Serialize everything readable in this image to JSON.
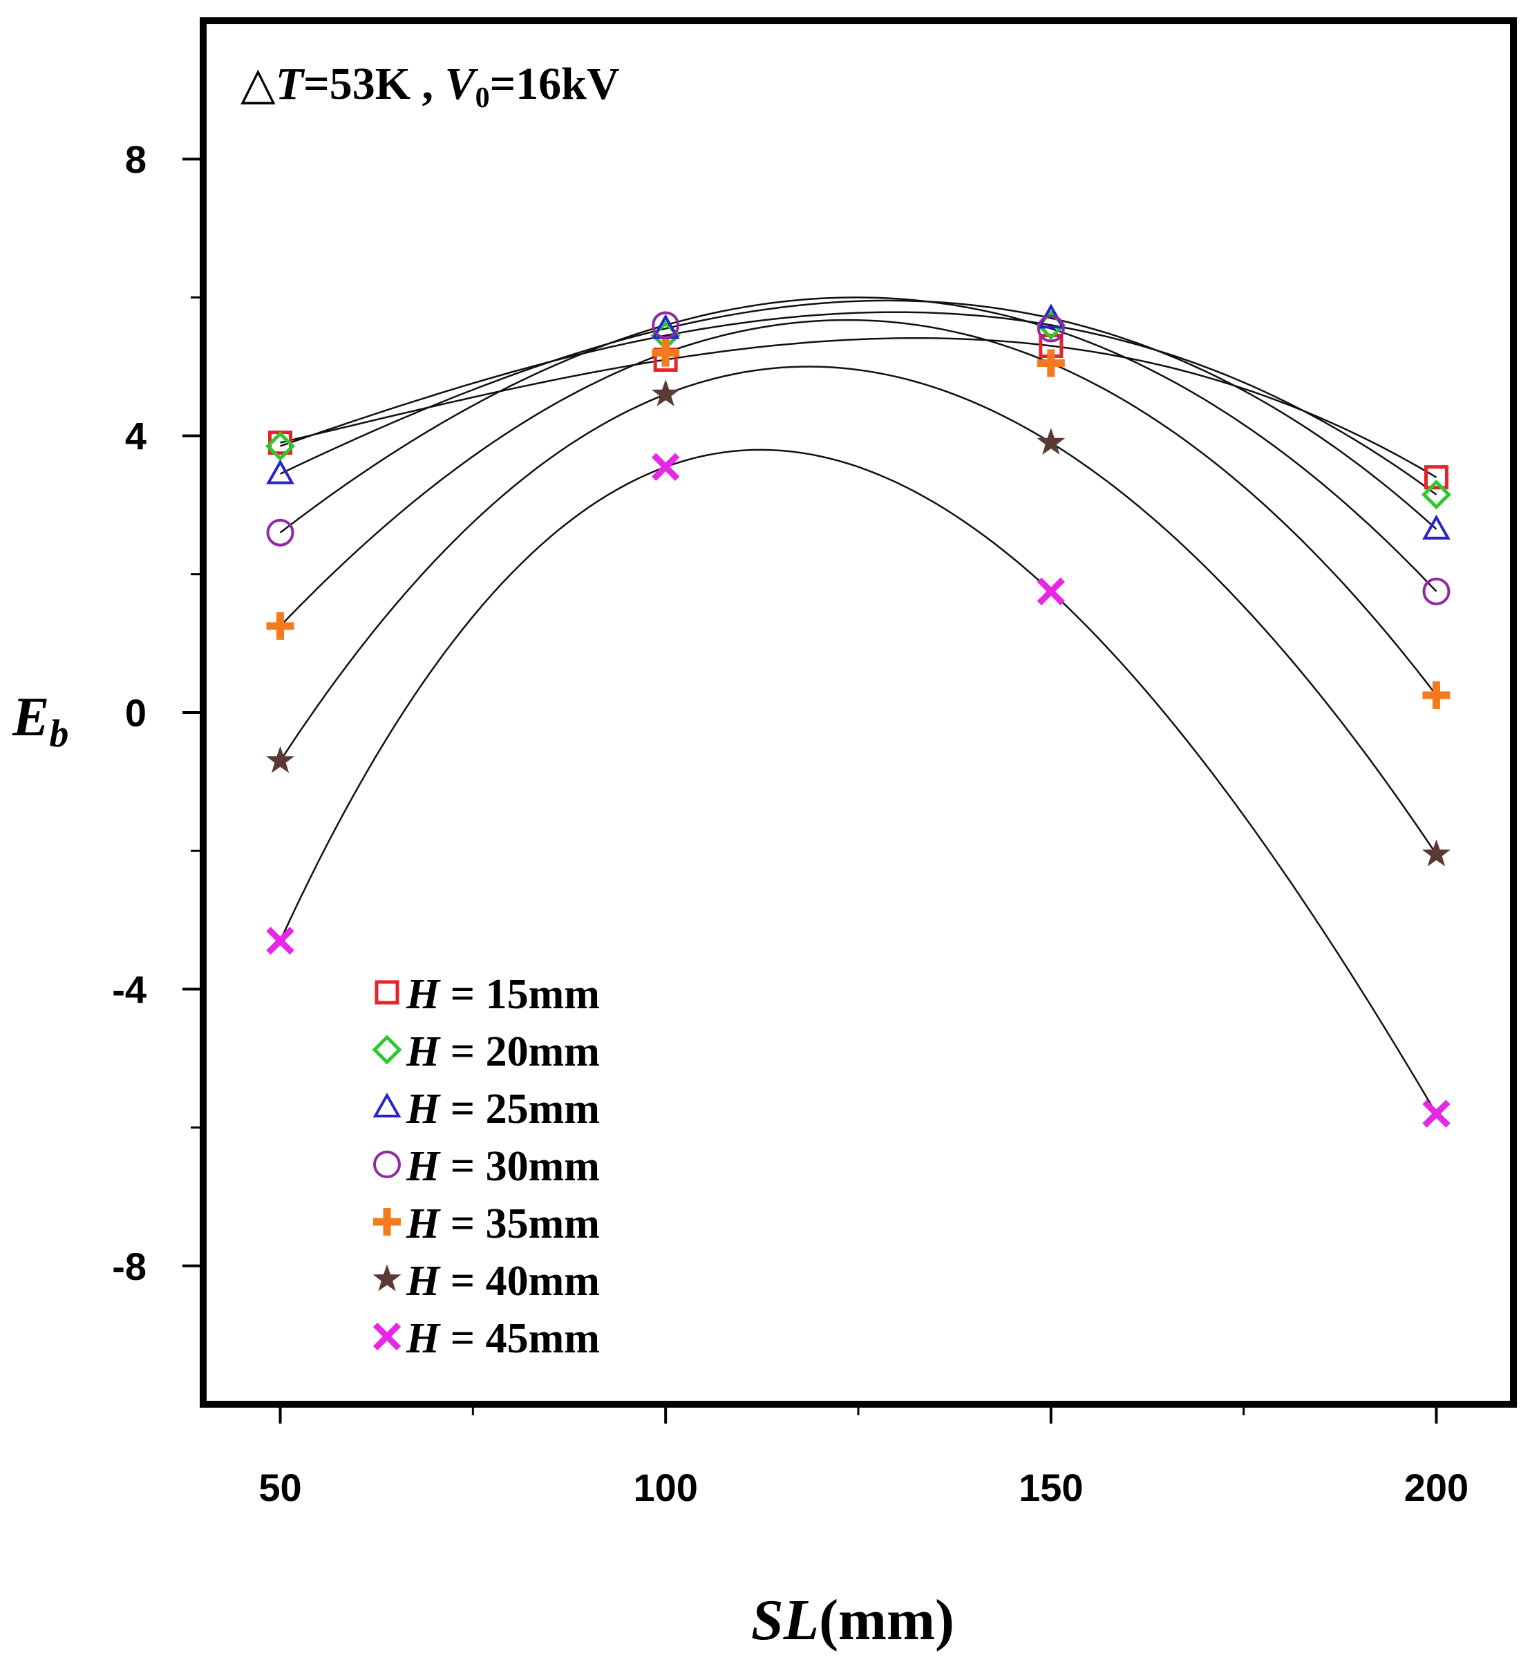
{
  "chart_data": {
    "type": "scatter",
    "title": "",
    "annotation": {
      "delta": "△",
      "t_var": "T",
      "t_value": "=53K , ",
      "v_var": "V",
      "v_sub": "0",
      "v_value": "=16kV"
    },
    "xlabel": {
      "italic": "SL",
      "rest": "(mm)"
    },
    "ylabel": {
      "main": "E",
      "sub": "b"
    },
    "x": [
      50,
      100,
      150,
      200
    ],
    "xlim": [
      40,
      210
    ],
    "ylim": [
      -10,
      10
    ],
    "xticks": [
      50,
      100,
      150,
      200
    ],
    "xtick_labels": [
      "50",
      "100",
      "150",
      "200"
    ],
    "x_minor_ticks": [
      75,
      125,
      175
    ],
    "yticks": [
      -8,
      -4,
      0,
      4,
      8
    ],
    "ytick_labels": [
      "-8",
      "-4",
      "0",
      "4",
      "8"
    ],
    "y_minor_ticks": [
      -6,
      -2,
      2,
      6
    ],
    "grid": false,
    "legend_position": "lower-left",
    "series": [
      {
        "name": "H = 15mm",
        "var": "H",
        "text": " = 15mm",
        "marker": "square",
        "color": "#e8222a",
        "values": [
          3.9,
          5.1,
          5.3,
          3.4
        ]
      },
      {
        "name": "H = 20mm",
        "var": "H",
        "text": " = 20mm",
        "marker": "diamond",
        "color": "#2ec82e",
        "values": [
          3.85,
          5.45,
          5.6,
          3.15
        ]
      },
      {
        "name": "H = 25mm",
        "var": "H",
        "text": " = 25mm",
        "marker": "triangle",
        "color": "#2525c8",
        "values": [
          3.45,
          5.55,
          5.7,
          2.65
        ]
      },
      {
        "name": "H = 30mm",
        "var": "H",
        "text": " = 30mm",
        "marker": "circle",
        "color": "#8e2aa6",
        "values": [
          2.6,
          5.6,
          5.55,
          1.75
        ]
      },
      {
        "name": "H = 35mm",
        "var": "H",
        "text": " = 35mm",
        "marker": "plus",
        "color": "#f47a1e",
        "values": [
          1.25,
          5.2,
          5.05,
          0.25
        ]
      },
      {
        "name": "H = 40mm",
        "var": "H",
        "text": " = 40mm",
        "marker": "star",
        "color": "#5b3a36",
        "values": [
          -0.7,
          4.6,
          3.9,
          -2.05
        ]
      },
      {
        "name": "H = 45mm",
        "var": "H",
        "text": " = 45mm",
        "marker": "x",
        "color": "#e627e6",
        "values": [
          -3.3,
          3.55,
          1.75,
          -5.8
        ]
      }
    ]
  }
}
